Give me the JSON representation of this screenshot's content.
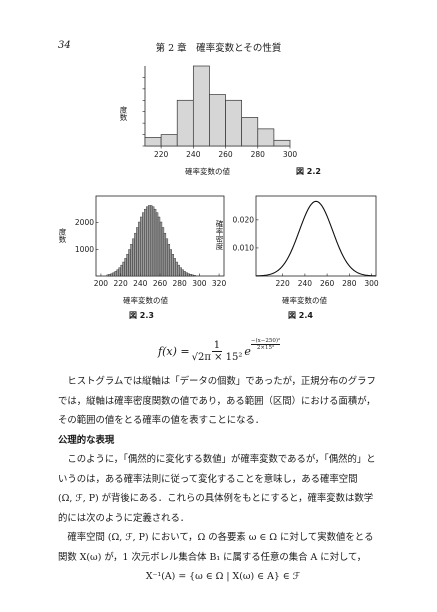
{
  "header": {
    "page_number": "34",
    "chapter_title": "第 2 章　確率変数とその性質"
  },
  "figures": {
    "fig22": {
      "caption": "図 2.2",
      "xlabel": "確率変数の値",
      "ylabel": "度数"
    },
    "fig23": {
      "caption": "図 2.3",
      "xlabel": "確率変数の値",
      "ylabel": "度数"
    },
    "fig24": {
      "caption": "図 2.4",
      "xlabel": "確率変数の値",
      "ylabel": "確率密度"
    }
  },
  "chart_data": [
    {
      "type": "bar",
      "title": "",
      "xlabel": "確率変数の値",
      "ylabel": "度数",
      "bin_edges": [
        210,
        220,
        230,
        240,
        250,
        260,
        270,
        280,
        290,
        300
      ],
      "values": [
        1.5,
        2,
        8,
        14,
        9,
        8,
        5,
        3,
        1
      ],
      "xticks": [
        220,
        240,
        260,
        280,
        300
      ],
      "xlim": [
        210,
        300
      ],
      "ylim": [
        0,
        14
      ],
      "caption": "図 2.2"
    },
    {
      "type": "bar",
      "title": "",
      "xlabel": "確率変数の値",
      "ylabel": "度数",
      "distribution": "normal",
      "mean": 250,
      "sd": 15,
      "bin_width": 2,
      "peak_count": 2650,
      "xticks": [
        200,
        220,
        240,
        260,
        280,
        300,
        320
      ],
      "yticks": [
        1000,
        2000
      ],
      "xlim": [
        195,
        325
      ],
      "ylim": [
        0,
        3000
      ],
      "caption": "図 2.3"
    },
    {
      "type": "line",
      "title": "",
      "xlabel": "確率変数の値",
      "ylabel": "確率密度",
      "distribution": "normal",
      "mean": 250,
      "sd": 15,
      "xticks": [
        220,
        240,
        260,
        280,
        300
      ],
      "yticks": [
        0.01,
        0.02
      ],
      "ytick_labels": [
        "0.010",
        "0.020"
      ],
      "xlim": [
        196,
        304
      ],
      "ylim": [
        0,
        0.0285
      ],
      "caption": "図 2.4"
    }
  ],
  "formula": {
    "lhs": "f(x) = ",
    "numerator": "1",
    "denominator": "√2π × 15²",
    "exp_base": "e",
    "exponent_numerator": "−(x−250)²",
    "exponent_denominator": "2×15²"
  },
  "paragraphs": {
    "p1_line1": "ヒストグラムでは縦軸は「データの個数」であったが，正規分布のグラフ",
    "p1_line2": "では，縦軸は確率密度関数の値であり，ある範囲（区間）における面積が，",
    "p1_line3": "その範囲の値をとる確率の値を表すことになる．",
    "heading": "公理的な表現",
    "p2_line1": "このように，「偶然的に変化する数値」が確率変数であるが，「偶然的」と",
    "p2_line2": "いうのは，ある確率法則に従って変化することを意味し，ある確率空間",
    "p2_line3": "(Ω, ℱ, P) が背後にある．これらの具体例をもとにすると，確率変数は数学",
    "p2_line4": "的には次のように定義される．",
    "p3_line1": "確率空間 (Ω, ℱ, P) において，Ω の各要素 ω ∈ Ω に対して実数値をとる",
    "p3_line2": "関数 X(ω) が，1 次元ボレル集合体 B₁ に属する任意の集合 A に対して，",
    "p3_line3": "X⁻¹(A) = {ω ∈ Ω | X(ω) ∈ A} ∈ ℱ"
  }
}
